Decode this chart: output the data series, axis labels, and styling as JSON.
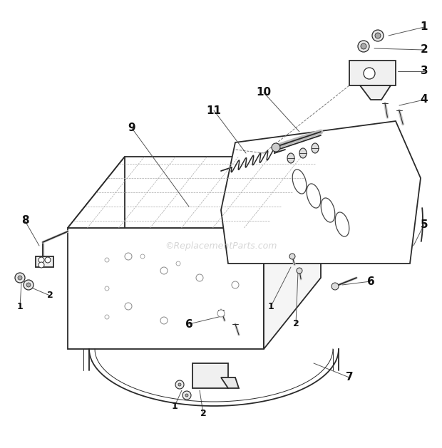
{
  "background_color": "#ffffff",
  "watermark": "©ReplacementParts.com",
  "watermark_color": "#bbbbbb",
  "watermark_fontsize": 9,
  "label_fontsize": 9,
  "label_fontsize_large": 11,
  "label_color": "#111111",
  "line_color": "#2a2a2a",
  "line_color_light": "#777777",
  "dash_color": "#555555"
}
